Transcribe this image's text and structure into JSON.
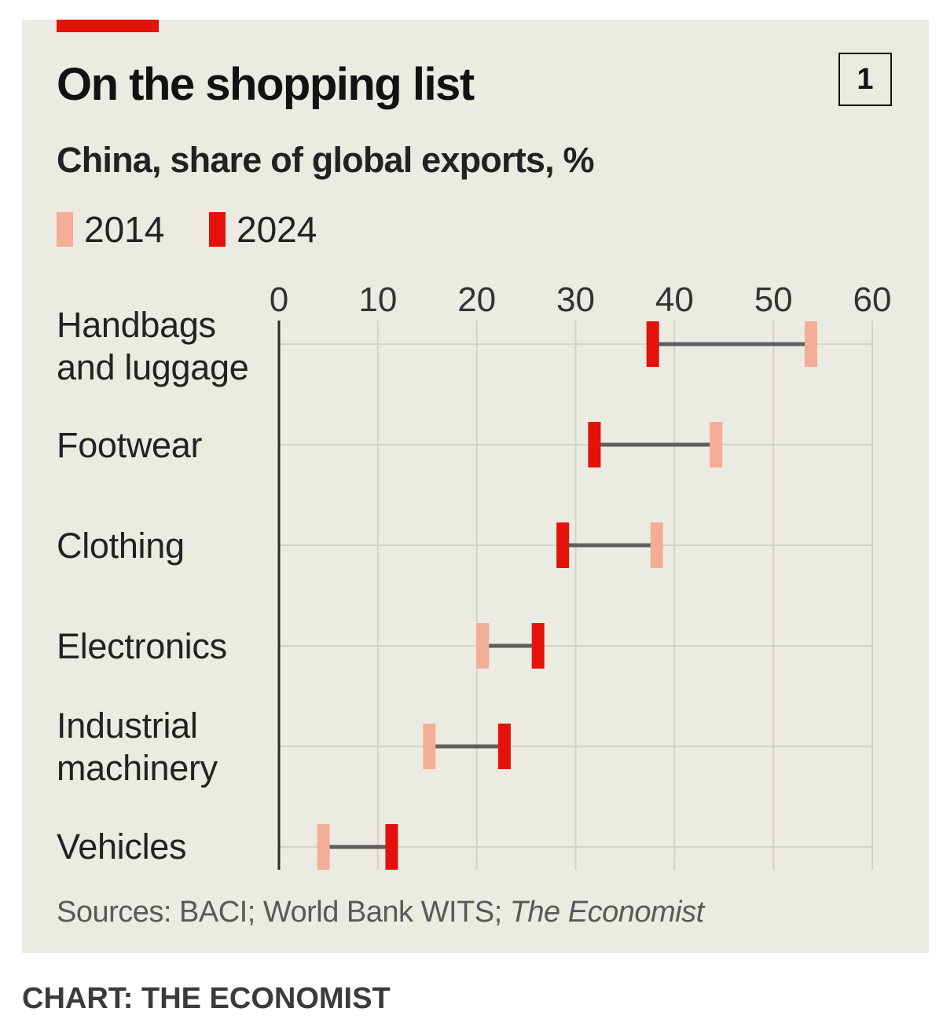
{
  "chart_number": "1",
  "source": {
    "prefix": "Sources: BACI; World Bank WITS; ",
    "italic": "The Economist"
  },
  "credit": "CHART: THE ECONOMIST",
  "colors": {
    "y2014": "#f4ad96",
    "y2024": "#e3120b",
    "connector": "#5e5e5e",
    "background": "#ecebe1",
    "grid": "#d4d3c8",
    "accent": "#e3120b"
  },
  "chart_data": {
    "type": "dumbbell",
    "title": "On the shopping list",
    "subtitle": "China, share of global exports, %",
    "xlim": [
      0,
      60
    ],
    "x_ticks": [
      "0",
      "10",
      "20",
      "30",
      "40",
      "50",
      "60"
    ],
    "legend": [
      "2014",
      "2024"
    ],
    "categories": [
      "Handbags\nand luggage",
      "Footwear",
      "Clothing",
      "Electronics",
      "Industrial\nmachinery",
      "Vehicles"
    ],
    "series": [
      {
        "name": "2014",
        "values": [
          53.8,
          44.2,
          38.2,
          20.6,
          15.2,
          4.5
        ]
      },
      {
        "name": "2024",
        "values": [
          37.8,
          31.9,
          28.7,
          26.2,
          22.8,
          11.4
        ]
      }
    ]
  }
}
